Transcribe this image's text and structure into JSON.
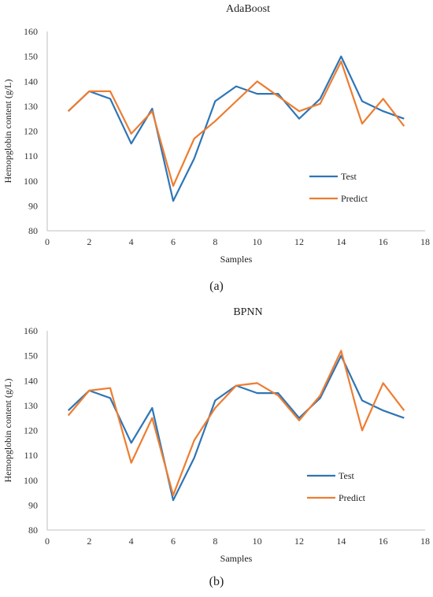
{
  "chart_data": [
    {
      "type": "line",
      "title": "AdaBoost",
      "panel_label": "(a)",
      "xlabel": "Samples",
      "ylabel": "Hemopglobin content (g/L)",
      "xlim": [
        0,
        18
      ],
      "ylim": [
        80,
        160
      ],
      "xticks": [
        "0",
        "2",
        "4",
        "6",
        "8",
        "10",
        "12",
        "14",
        "16",
        "18"
      ],
      "yticks": [
        "80",
        "90",
        "100",
        "110",
        "120",
        "130",
        "140",
        "150",
        "160"
      ],
      "legend_position": "right-middle",
      "grid": false,
      "x": [
        1,
        2,
        3,
        4,
        5,
        6,
        7,
        8,
        9,
        10,
        11,
        12,
        13,
        14,
        15,
        16,
        17
      ],
      "series": [
        {
          "name": "Test",
          "color": "#2E75B6",
          "values": [
            128,
            136,
            133,
            115,
            129,
            92,
            109,
            132,
            138,
            135,
            135,
            125,
            133,
            150,
            132,
            128,
            125
          ]
        },
        {
          "name": "Predict",
          "color": "#ED7D31",
          "values": [
            128,
            136,
            136,
            119,
            128,
            98,
            117,
            124,
            132,
            140,
            134,
            128,
            131,
            148,
            123,
            133,
            122
          ]
        }
      ]
    },
    {
      "type": "line",
      "title": "BPNN",
      "panel_label": "(b)",
      "xlabel": "Samples",
      "ylabel": "Hemopglobin content (g/L)",
      "xlim": [
        0,
        18
      ],
      "ylim": [
        80,
        160
      ],
      "xticks": [
        "0",
        "2",
        "4",
        "6",
        "8",
        "10",
        "12",
        "14",
        "16",
        "18"
      ],
      "yticks": [
        "80",
        "90",
        "100",
        "110",
        "120",
        "130",
        "140",
        "150",
        "160"
      ],
      "legend_position": "right-middle",
      "grid": false,
      "x": [
        1,
        2,
        3,
        4,
        5,
        6,
        7,
        8,
        9,
        10,
        11,
        12,
        13,
        14,
        15,
        16,
        17
      ],
      "series": [
        {
          "name": "Test",
          "color": "#2E75B6",
          "values": [
            128,
            136,
            133,
            115,
            129,
            92,
            109,
            132,
            138,
            135,
            135,
            125,
            133,
            150,
            132,
            128,
            125
          ]
        },
        {
          "name": "Predict",
          "color": "#ED7D31",
          "values": [
            126,
            136,
            137,
            107,
            125,
            94,
            116,
            129,
            138,
            139,
            134,
            124,
            134,
            152,
            120,
            139,
            128
          ]
        }
      ]
    }
  ]
}
